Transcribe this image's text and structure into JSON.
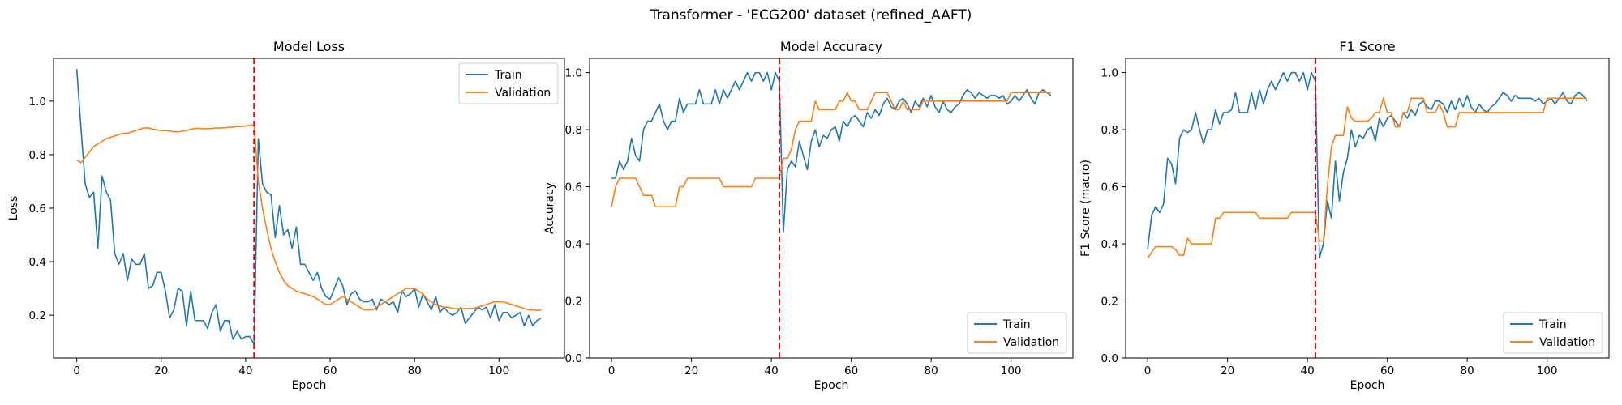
{
  "figure_title": "Transformer - 'ECG200' dataset (refined_AAFT)",
  "colors": {
    "train": "#1f77b4",
    "validation": "#ff7f0e",
    "marker": "#e00000"
  },
  "chart_data": [
    {
      "type": "line",
      "title": "Model Loss",
      "xlabel": "Epoch",
      "ylabel": "Loss",
      "xlim": [
        -5.5,
        115.5
      ],
      "ylim": [
        0.04,
        1.16
      ],
      "xticks": [
        0,
        20,
        40,
        60,
        80,
        100
      ],
      "yticks": [
        0.2,
        0.4,
        0.6,
        0.8,
        1.0
      ],
      "ytick_labels": [
        "0.2",
        "0.4",
        "0.6",
        "0.8",
        "1.0"
      ],
      "vline": 42,
      "legend": "top-right",
      "series": [
        {
          "name": "Train",
          "color": "#1f77b4",
          "y": [
            1.12,
            0.9,
            0.69,
            0.64,
            0.66,
            0.45,
            0.72,
            0.66,
            0.63,
            0.43,
            0.39,
            0.43,
            0.33,
            0.41,
            0.39,
            0.39,
            0.43,
            0.3,
            0.31,
            0.36,
            0.36,
            0.29,
            0.19,
            0.22,
            0.3,
            0.29,
            0.16,
            0.29,
            0.18,
            0.18,
            0.18,
            0.15,
            0.21,
            0.24,
            0.14,
            0.18,
            0.18,
            0.11,
            0.14,
            0.11,
            0.12,
            0.12,
            0.09,
            0.86,
            0.69,
            0.66,
            0.65,
            0.49,
            0.61,
            0.5,
            0.52,
            0.45,
            0.53,
            0.39,
            0.39,
            0.36,
            0.33,
            0.36,
            0.3,
            0.27,
            0.26,
            0.3,
            0.34,
            0.31,
            0.24,
            0.28,
            0.29,
            0.26,
            0.25,
            0.25,
            0.26,
            0.22,
            0.26,
            0.25,
            0.24,
            0.25,
            0.21,
            0.29,
            0.27,
            0.28,
            0.3,
            0.23,
            0.28,
            0.25,
            0.22,
            0.27,
            0.21,
            0.23,
            0.21,
            0.2,
            0.21,
            0.23,
            0.17,
            0.19,
            0.21,
            0.23,
            0.22,
            0.23,
            0.19,
            0.24,
            0.18,
            0.21,
            0.21,
            0.19,
            0.2,
            0.21,
            0.16,
            0.2,
            0.16,
            0.18,
            0.19
          ]
        },
        {
          "name": "Validation",
          "color": "#ff7f0e",
          "y": [
            0.78,
            0.77,
            0.79,
            0.81,
            0.83,
            0.84,
            0.85,
            0.86,
            0.865,
            0.87,
            0.875,
            0.88,
            0.88,
            0.885,
            0.89,
            0.895,
            0.9,
            0.9,
            0.895,
            0.893,
            0.89,
            0.89,
            0.888,
            0.886,
            0.885,
            0.888,
            0.89,
            0.895,
            0.898,
            0.898,
            0.897,
            0.897,
            0.898,
            0.9,
            0.9,
            0.9,
            0.902,
            0.903,
            0.905,
            0.905,
            0.907,
            0.91,
            0.91,
            0.7,
            0.6,
            0.52,
            0.45,
            0.4,
            0.36,
            0.33,
            0.31,
            0.3,
            0.29,
            0.285,
            0.28,
            0.275,
            0.27,
            0.26,
            0.25,
            0.24,
            0.24,
            0.25,
            0.26,
            0.27,
            0.26,
            0.25,
            0.24,
            0.23,
            0.22,
            0.22,
            0.22,
            0.23,
            0.24,
            0.25,
            0.26,
            0.27,
            0.28,
            0.29,
            0.3,
            0.3,
            0.3,
            0.29,
            0.28,
            0.26,
            0.25,
            0.24,
            0.235,
            0.23,
            0.23,
            0.225,
            0.225,
            0.225,
            0.225,
            0.225,
            0.225,
            0.23,
            0.235,
            0.24,
            0.245,
            0.25,
            0.25,
            0.25,
            0.245,
            0.24,
            0.235,
            0.23,
            0.225,
            0.22,
            0.22,
            0.218,
            0.22
          ]
        }
      ]
    },
    {
      "type": "line",
      "title": "Model Accuracy",
      "xlabel": "Epoch",
      "ylabel": "Accuracy",
      "xlim": [
        -5.5,
        115.5
      ],
      "ylim": [
        0.0,
        1.05
      ],
      "xticks": [
        0,
        20,
        40,
        60,
        80,
        100
      ],
      "yticks": [
        0.0,
        0.2,
        0.4,
        0.6,
        0.8,
        1.0
      ],
      "ytick_labels": [
        "0.0",
        "0.2",
        "0.4",
        "0.6",
        "0.8",
        "1.0"
      ],
      "vline": 42,
      "legend": "bottom-right",
      "series": [
        {
          "name": "Train",
          "color": "#1f77b4",
          "y": [
            0.63,
            0.63,
            0.69,
            0.66,
            0.69,
            0.77,
            0.71,
            0.69,
            0.8,
            0.83,
            0.83,
            0.86,
            0.89,
            0.83,
            0.8,
            0.83,
            0.83,
            0.91,
            0.86,
            0.89,
            0.89,
            0.89,
            0.94,
            0.89,
            0.89,
            0.89,
            0.94,
            0.89,
            0.94,
            0.91,
            0.94,
            0.97,
            0.94,
            0.97,
            1.0,
            0.97,
            1.0,
            1.0,
            0.97,
            1.0,
            0.94,
            1.0,
            0.97,
            0.44,
            0.66,
            0.69,
            0.67,
            0.76,
            0.71,
            0.66,
            0.76,
            0.8,
            0.74,
            0.78,
            0.77,
            0.8,
            0.81,
            0.76,
            0.83,
            0.81,
            0.84,
            0.85,
            0.83,
            0.81,
            0.86,
            0.84,
            0.87,
            0.85,
            0.89,
            0.91,
            0.88,
            0.87,
            0.9,
            0.91,
            0.89,
            0.86,
            0.9,
            0.88,
            0.91,
            0.88,
            0.92,
            0.88,
            0.86,
            0.9,
            0.87,
            0.86,
            0.88,
            0.89,
            0.92,
            0.94,
            0.93,
            0.91,
            0.93,
            0.92,
            0.91,
            0.92,
            0.92,
            0.91,
            0.92,
            0.89,
            0.9,
            0.92,
            0.9,
            0.92,
            0.94,
            0.91,
            0.89,
            0.93,
            0.94,
            0.93,
            0.92
          ]
        },
        {
          "name": "Validation",
          "color": "#ff7f0e",
          "y": [
            0.53,
            0.6,
            0.63,
            0.63,
            0.63,
            0.63,
            0.63,
            0.6,
            0.57,
            0.57,
            0.57,
            0.53,
            0.53,
            0.53,
            0.53,
            0.53,
            0.53,
            0.6,
            0.6,
            0.63,
            0.63,
            0.63,
            0.63,
            0.63,
            0.63,
            0.63,
            0.63,
            0.63,
            0.6,
            0.6,
            0.6,
            0.6,
            0.6,
            0.6,
            0.6,
            0.6,
            0.63,
            0.63,
            0.63,
            0.63,
            0.63,
            0.63,
            0.63,
            0.7,
            0.7,
            0.73,
            0.8,
            0.83,
            0.83,
            0.83,
            0.83,
            0.9,
            0.87,
            0.87,
            0.87,
            0.87,
            0.87,
            0.9,
            0.9,
            0.93,
            0.9,
            0.9,
            0.87,
            0.87,
            0.87,
            0.9,
            0.93,
            0.93,
            0.93,
            0.93,
            0.9,
            0.87,
            0.87,
            0.9,
            0.87,
            0.87,
            0.87,
            0.87,
            0.9,
            0.9,
            0.9,
            0.9,
            0.9,
            0.9,
            0.9,
            0.9,
            0.9,
            0.9,
            0.9,
            0.9,
            0.9,
            0.9,
            0.9,
            0.9,
            0.9,
            0.9,
            0.9,
            0.9,
            0.9,
            0.9,
            0.93,
            0.93,
            0.93,
            0.93,
            0.93,
            0.93,
            0.93,
            0.93,
            0.93,
            0.93,
            0.93
          ]
        }
      ]
    },
    {
      "type": "line",
      "title": "F1 Score",
      "xlabel": "Epoch",
      "ylabel": "F1 Score (macro)",
      "xlim": [
        -5.5,
        115.5
      ],
      "ylim": [
        0.0,
        1.05
      ],
      "xticks": [
        0,
        20,
        40,
        60,
        80,
        100
      ],
      "yticks": [
        0.0,
        0.2,
        0.4,
        0.6,
        0.8,
        1.0
      ],
      "ytick_labels": [
        "0.0",
        "0.2",
        "0.4",
        "0.6",
        "0.8",
        "1.0"
      ],
      "vline": 42,
      "legend": "bottom-right",
      "series": [
        {
          "name": "Train",
          "color": "#1f77b4",
          "y": [
            0.38,
            0.5,
            0.53,
            0.51,
            0.54,
            0.7,
            0.68,
            0.61,
            0.77,
            0.8,
            0.79,
            0.8,
            0.86,
            0.8,
            0.75,
            0.8,
            0.8,
            0.87,
            0.82,
            0.86,
            0.86,
            0.87,
            0.93,
            0.86,
            0.86,
            0.86,
            0.93,
            0.87,
            0.94,
            0.89,
            0.94,
            0.97,
            0.94,
            0.97,
            1.0,
            0.97,
            1.0,
            1.0,
            0.97,
            1.0,
            0.94,
            1.0,
            0.97,
            0.35,
            0.4,
            0.55,
            0.49,
            0.69,
            0.55,
            0.65,
            0.7,
            0.8,
            0.74,
            0.78,
            0.77,
            0.8,
            0.81,
            0.76,
            0.84,
            0.81,
            0.84,
            0.85,
            0.83,
            0.81,
            0.86,
            0.84,
            0.87,
            0.85,
            0.89,
            0.9,
            0.88,
            0.87,
            0.9,
            0.9,
            0.89,
            0.86,
            0.9,
            0.87,
            0.91,
            0.88,
            0.92,
            0.88,
            0.86,
            0.89,
            0.87,
            0.86,
            0.88,
            0.89,
            0.91,
            0.93,
            0.92,
            0.9,
            0.92,
            0.91,
            0.91,
            0.91,
            0.91,
            0.9,
            0.91,
            0.89,
            0.9,
            0.91,
            0.89,
            0.91,
            0.93,
            0.9,
            0.89,
            0.92,
            0.93,
            0.92,
            0.9
          ]
        },
        {
          "name": "Validation",
          "color": "#ff7f0e",
          "y": [
            0.35,
            0.37,
            0.39,
            0.39,
            0.39,
            0.39,
            0.39,
            0.38,
            0.36,
            0.36,
            0.42,
            0.4,
            0.4,
            0.4,
            0.4,
            0.4,
            0.4,
            0.49,
            0.49,
            0.51,
            0.51,
            0.51,
            0.51,
            0.51,
            0.51,
            0.51,
            0.51,
            0.51,
            0.49,
            0.49,
            0.49,
            0.49,
            0.49,
            0.49,
            0.49,
            0.49,
            0.51,
            0.51,
            0.51,
            0.51,
            0.51,
            0.51,
            0.51,
            0.41,
            0.41,
            0.6,
            0.74,
            0.78,
            0.78,
            0.78,
            0.88,
            0.84,
            0.83,
            0.83,
            0.83,
            0.83,
            0.84,
            0.86,
            0.86,
            0.91,
            0.86,
            0.86,
            0.81,
            0.81,
            0.86,
            0.86,
            0.91,
            0.91,
            0.91,
            0.91,
            0.86,
            0.86,
            0.86,
            0.89,
            0.86,
            0.81,
            0.81,
            0.81,
            0.86,
            0.86,
            0.86,
            0.86,
            0.86,
            0.86,
            0.86,
            0.86,
            0.86,
            0.86,
            0.86,
            0.86,
            0.86,
            0.86,
            0.86,
            0.86,
            0.86,
            0.86,
            0.86,
            0.86,
            0.86,
            0.86,
            0.91,
            0.91,
            0.91,
            0.91,
            0.91,
            0.91,
            0.91,
            0.91,
            0.91,
            0.91,
            0.91
          ]
        }
      ]
    }
  ]
}
